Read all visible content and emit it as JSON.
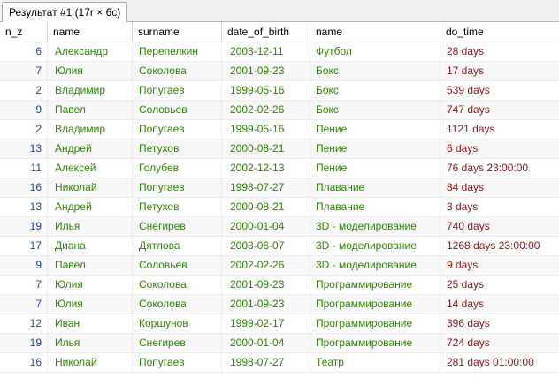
{
  "tab": {
    "label": "Результат #1 (17r × 6c)"
  },
  "columns": [
    "n_z",
    "name",
    "surname",
    "date_of_birth",
    "name",
    "do_time"
  ],
  "colors": {
    "number": "#1d40d8",
    "text": "#2a8a00",
    "interval": "#9a1313"
  },
  "rows": [
    [
      "6",
      "Александр",
      "Перепелкин",
      "2003-12-11",
      "Футбол",
      "28 days"
    ],
    [
      "7",
      "Юлия",
      "Соколова",
      "2001-09-23",
      "Бокс",
      "17 days"
    ],
    [
      "2",
      "Владимир",
      "Попугаев",
      "1999-05-16",
      "Бокс",
      "539 days"
    ],
    [
      "9",
      "Павел",
      "Соловьев",
      "2002-02-26",
      "Бокс",
      "747 days"
    ],
    [
      "2",
      "Владимир",
      "Попугаев",
      "1999-05-16",
      "Пение",
      "1121 days"
    ],
    [
      "13",
      "Андрей",
      "Петухов",
      "2000-08-21",
      "Пение",
      "6 days"
    ],
    [
      "11",
      "Алексей",
      "Голубев",
      "2002-12-13",
      "Пение",
      "76 days 23:00:00"
    ],
    [
      "16",
      "Николай",
      "Попугаев",
      "1998-07-27",
      "Плавание",
      "84 days"
    ],
    [
      "13",
      "Андрей",
      "Петухов",
      "2000-08-21",
      "Плавание",
      "3 days"
    ],
    [
      "19",
      "Илья",
      "Снегирев",
      "2000-01-04",
      "3D - моделирование",
      "740 days"
    ],
    [
      "17",
      "Диана",
      "Дятлова",
      "2003-06-07",
      "3D - моделирование",
      "1268 days 23:00:00"
    ],
    [
      "9",
      "Павел",
      "Соловьев",
      "2002-02-26",
      "3D - моделирование",
      "9 days"
    ],
    [
      "7",
      "Юлия",
      "Соколова",
      "2001-09-23",
      "Программирование",
      "25 days"
    ],
    [
      "7",
      "Юлия",
      "Соколова",
      "2001-09-23",
      "Программирование",
      "14 days"
    ],
    [
      "12",
      "Иван",
      "Коршунов",
      "1999-02-17",
      "Программирование",
      "396 days"
    ],
    [
      "19",
      "Илья",
      "Снегирев",
      "2000-01-04",
      "Программирование",
      "724 days"
    ],
    [
      "16",
      "Николай",
      "Попугаев",
      "1998-07-27",
      "Театр",
      "281 days 01:00:00"
    ]
  ]
}
